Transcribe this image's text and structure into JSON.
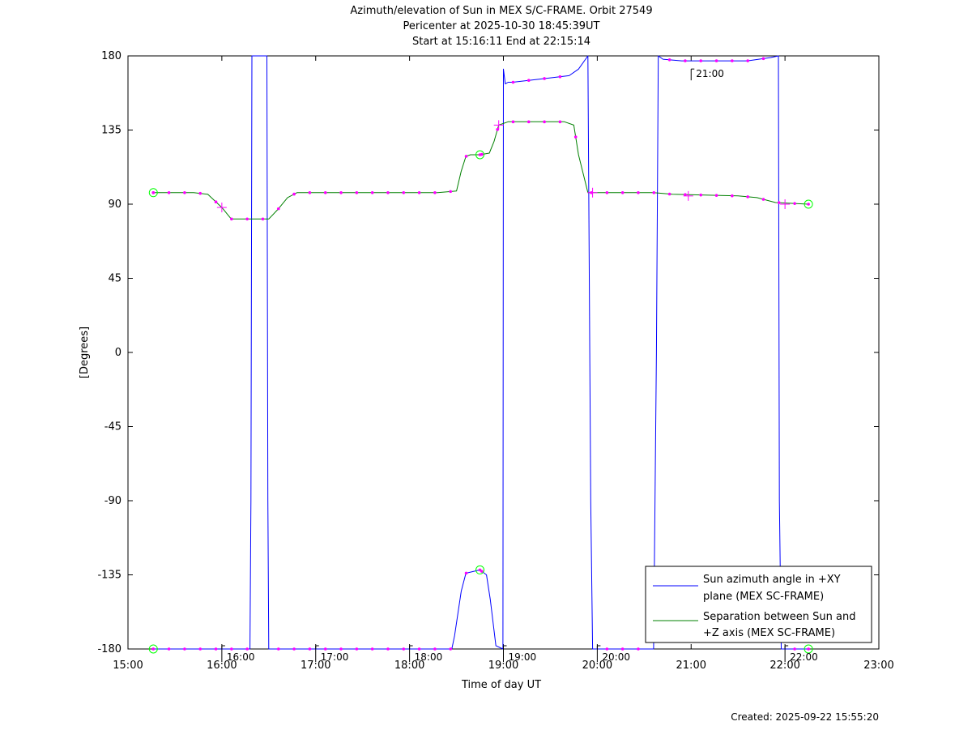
{
  "chart_data": {
    "type": "line",
    "title_lines": [
      "Azimuth/elevation of Sun in MEX S/C-FRAME.  Orbit 27549",
      "Pericenter at 2025-10-30 18:45:39UT",
      "Start at 15:16:11 End at 22:15:14"
    ],
    "xlabel": "Time of day UT",
    "ylabel": "[Degrees]",
    "xlim": [
      15.0,
      23.0
    ],
    "ylim": [
      -180,
      180
    ],
    "x_ticks": [
      {
        "value": 15,
        "label": "15:00"
      },
      {
        "value": 16,
        "label": "16:00"
      },
      {
        "value": 17,
        "label": "17:00"
      },
      {
        "value": 18,
        "label": "18:00"
      },
      {
        "value": 19,
        "label": "19:00"
      },
      {
        "value": 20,
        "label": "20:00"
      },
      {
        "value": 21,
        "label": "21:00"
      },
      {
        "value": 22,
        "label": "22:00"
      },
      {
        "value": 23,
        "label": "23:00"
      }
    ],
    "y_ticks": [
      {
        "value": 180,
        "label": "180"
      },
      {
        "value": 135,
        "label": "135"
      },
      {
        "value": 90,
        "label": "90"
      },
      {
        "value": 45,
        "label": "45"
      },
      {
        "value": 0,
        "label": "0"
      },
      {
        "value": -45,
        "label": "-45"
      },
      {
        "value": -90,
        "label": "-90"
      },
      {
        "value": -135,
        "label": "-135"
      },
      {
        "value": -180,
        "label": "-180"
      }
    ],
    "hour_marks": [
      {
        "x": 16.0,
        "y": -180,
        "label": "16:00"
      },
      {
        "x": 17.0,
        "y": -180,
        "label": "17:00"
      },
      {
        "x": 18.0,
        "y": -180,
        "label": "18:00"
      },
      {
        "x": 19.0,
        "y": -180,
        "label": "19:00"
      },
      {
        "x": 20.0,
        "y": -180,
        "label": "20:00"
      },
      {
        "x": 21.0,
        "y": 175,
        "label": "21:00"
      },
      {
        "x": 22.0,
        "y": -180,
        "label": "22:00"
      }
    ],
    "legend_position": "bottom-right",
    "series": [
      {
        "name": "Sun azimuth angle in +XY plane (MEX SC-FRAME)",
        "legend_lines": [
          "Sun azimuth angle in +XY",
          "plane (MEX SC-FRAME)"
        ],
        "color": "#0000ff",
        "x": [
          15.27,
          15.5,
          16.0,
          16.2,
          16.3,
          16.31,
          16.32,
          16.48,
          16.49,
          16.5,
          16.7,
          17.0,
          17.5,
          18.0,
          18.3,
          18.45,
          18.48,
          18.55,
          18.6,
          18.75,
          18.82,
          18.86,
          18.92,
          18.995,
          19.0,
          19.02,
          19.05,
          19.1,
          19.4,
          19.7,
          19.8,
          19.9,
          19.92,
          19.93,
          19.95,
          20.3,
          20.6,
          20.63,
          20.65,
          20.7,
          20.9,
          21.3,
          21.6,
          21.85,
          21.93,
          21.94,
          21.96,
          22.0,
          22.25
        ],
        "y": [
          -180,
          -180,
          -180,
          -180,
          -180,
          -90,
          180,
          180,
          -90,
          -180,
          -180,
          -180,
          -180,
          -180,
          -180,
          -180,
          -172,
          -145,
          -134,
          -132,
          -135,
          -150,
          -178,
          -180,
          172,
          163,
          164,
          164,
          166,
          168,
          172,
          180,
          0,
          -90,
          -180,
          -180,
          -180,
          0,
          180,
          178,
          177,
          177,
          177,
          179,
          180,
          -90,
          -180,
          -180,
          -180
        ]
      },
      {
        "name": "Separation between Sun and +Z axis (MEX SC-FRAME)",
        "legend_lines": [
          "Separation between Sun and",
          "+Z axis (MEX SC-FRAME)"
        ],
        "color": "#008000",
        "x": [
          15.27,
          15.5,
          15.7,
          15.85,
          16.0,
          16.1,
          16.3,
          16.5,
          16.6,
          16.7,
          16.8,
          17.0,
          17.5,
          18.0,
          18.3,
          18.5,
          18.55,
          18.6,
          18.65,
          18.75,
          18.85,
          18.9,
          18.95,
          19.05,
          19.5,
          19.65,
          19.75,
          19.8,
          19.9,
          20.3,
          20.6,
          20.8,
          21.5,
          21.7,
          21.9,
          22.25
        ],
        "y": [
          97,
          97,
          97,
          96,
          88,
          81,
          81,
          81,
          87,
          94,
          97,
          97,
          97,
          97,
          97,
          98,
          110,
          119,
          120,
          120,
          121,
          128,
          138,
          140,
          140,
          140,
          138,
          120,
          97,
          97,
          97,
          96,
          95,
          94,
          91,
          90
        ]
      }
    ],
    "markers": {
      "color": "#ff00ff",
      "circle_color": "#00ff00",
      "circles": [
        {
          "x": 15.27,
          "y": 97
        },
        {
          "x": 15.27,
          "y": -180
        },
        {
          "x": 18.75,
          "y": 120
        },
        {
          "x": 18.75,
          "y": -132
        },
        {
          "x": 22.25,
          "y": 90
        },
        {
          "x": 22.25,
          "y": -180
        }
      ],
      "crosses": [
        {
          "x": 16.0,
          "y": 88
        },
        {
          "x": 18.95,
          "y": 138
        },
        {
          "x": 19.95,
          "y": 97
        },
        {
          "x": 20.97,
          "y": 95
        },
        {
          "x": 22.0,
          "y": 90
        }
      ]
    }
  },
  "footer": {
    "created": "Created: 2025-09-22 15:55:20"
  }
}
